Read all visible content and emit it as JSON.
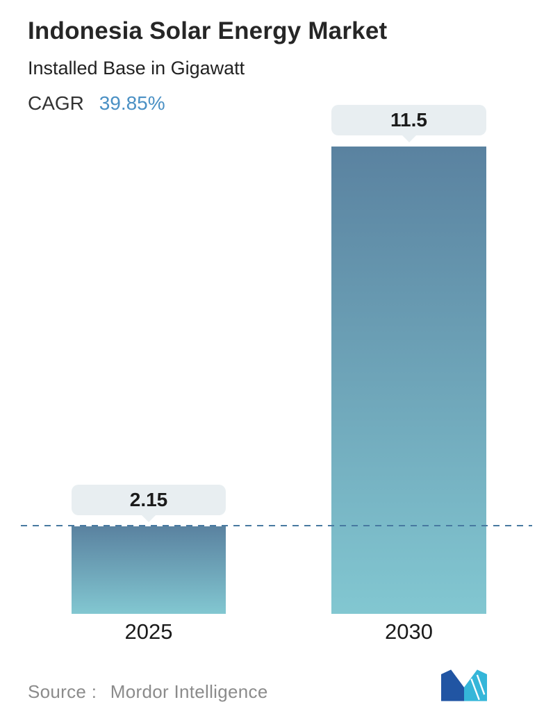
{
  "header": {
    "title": "Indonesia Solar Energy Market",
    "subtitle": "Installed Base in Gigawatt",
    "cagr_label": "CAGR",
    "cagr_value": "39.85%"
  },
  "chart_data": {
    "type": "bar",
    "title": "Indonesia Solar Energy Market",
    "subtitle": "Installed Base in Gigawatt",
    "cagr": "39.85%",
    "categories": [
      "2025",
      "2030"
    ],
    "values": [
      2.15,
      11.5
    ],
    "value_labels": [
      "2.15",
      "11.5"
    ],
    "xlabel": "",
    "ylabel": "Installed Base (Gigawatt)",
    "ylim": [
      0,
      11.5
    ],
    "dashed_line_value": 2.15,
    "grid": "off",
    "legend": "none",
    "colors": {
      "bar_gradient_top": "#5a82a0",
      "bar_gradient_bottom": "#82c7d1",
      "callout_bg": "#e8eef1",
      "dashed_line": "#4779a0",
      "accent_blue": "#4a90c4",
      "logo_blue": "#2155a3",
      "logo_teal": "#35b6d9"
    }
  },
  "footer": {
    "source_label": "Source :",
    "source_value": "Mordor Intelligence"
  }
}
